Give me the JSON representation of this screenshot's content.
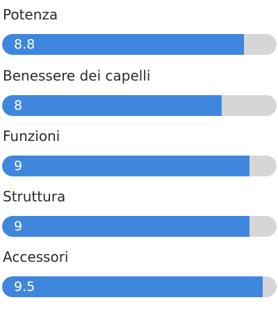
{
  "ratings": [
    {
      "label": "Potenza",
      "value_text": "8.8",
      "fill_fraction": 0.88
    },
    {
      "label": "Benessere dei capelli",
      "value_text": "8",
      "fill_fraction": 0.8
    },
    {
      "label": "Funzioni",
      "value_text": "9",
      "fill_fraction": 0.9
    },
    {
      "label": "Struttura",
      "value_text": "9",
      "fill_fraction": 0.9
    },
    {
      "label": "Accessori",
      "value_text": "9.5",
      "fill_fraction": 0.95
    }
  ],
  "colors": {
    "fill": "#3f87dc",
    "track": "#d6d6d6",
    "label_text": "#2b2b2b",
    "value_text": "#ffffff"
  }
}
